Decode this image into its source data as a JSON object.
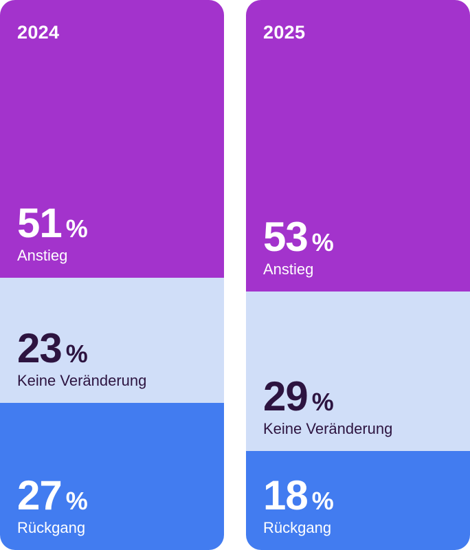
{
  "chart_data": {
    "type": "bar",
    "stacked": true,
    "categories": [
      "2024",
      "2025"
    ],
    "series": [
      {
        "name": "Anstieg",
        "values": [
          51,
          53
        ],
        "color": "#a333cc"
      },
      {
        "name": "Keine Veränderung",
        "values": [
          23,
          29
        ],
        "color": "#d0def8"
      },
      {
        "name": "Rückgang",
        "values": [
          27,
          18
        ],
        "color": "#427cf0"
      }
    ],
    "unit": "%",
    "segment_order_top_to_bottom": [
      "Anstieg",
      "Keine Veränderung",
      "Rückgang"
    ],
    "text_colors": {
      "Anstieg": "#ffffff",
      "Keine Veränderung": "#2d1440",
      "Rückgang": "#ffffff"
    },
    "year_label_color": "#ffffff"
  }
}
